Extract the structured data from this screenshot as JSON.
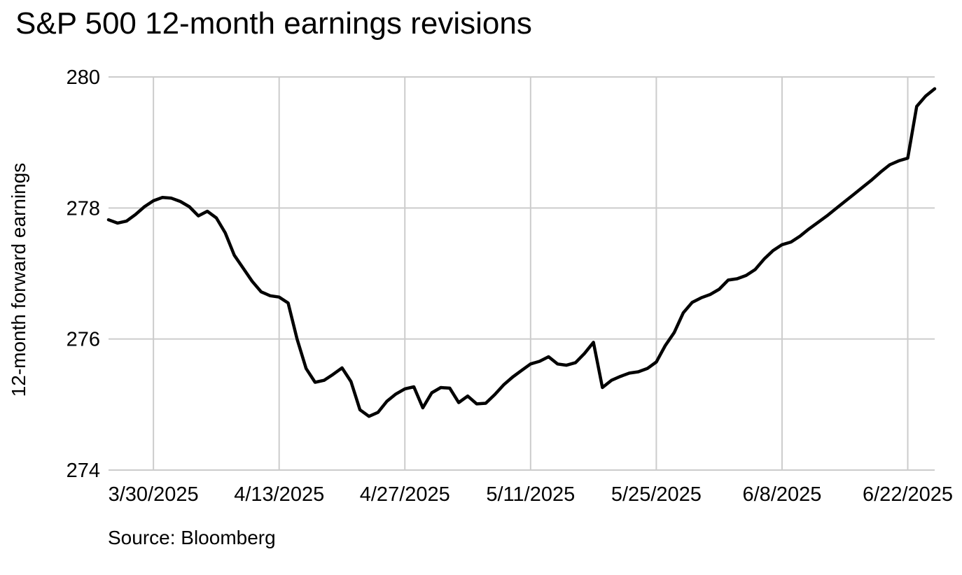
{
  "chart_data": {
    "type": "line",
    "title": "S&P 500 12-month earnings revisions",
    "ylabel": "12-month forward earnings",
    "xlabel": "",
    "source": "Source: Bloomberg",
    "series_name": "12-month forward earnings",
    "ylim": [
      274,
      280
    ],
    "yticks": [
      280,
      278,
      276,
      274
    ],
    "xticks": [
      "3/30/2025",
      "4/13/2025",
      "4/27/2025",
      "5/11/2025",
      "5/25/2025",
      "6/8/2025",
      "6/22/2025"
    ],
    "x_range": [
      "3/25/2025",
      "6/25/2025"
    ],
    "grid": true,
    "legend": false,
    "colors": {
      "line": "#000000",
      "grid": "#cccccc",
      "text": "#000000",
      "background": "#ffffff"
    },
    "points": [
      [
        "3/25/2025",
        277.82
      ],
      [
        "3/26/2025",
        277.77
      ],
      [
        "3/27/2025",
        277.8
      ],
      [
        "3/28/2025",
        277.9
      ],
      [
        "3/29/2025",
        278.02
      ],
      [
        "3/30/2025",
        278.11
      ],
      [
        "3/31/2025",
        278.16
      ],
      [
        "4/1/2025",
        278.15
      ],
      [
        "4/2/2025",
        278.1
      ],
      [
        "4/3/2025",
        278.02
      ],
      [
        "4/4/2025",
        277.88
      ],
      [
        "4/5/2025",
        277.95
      ],
      [
        "4/6/2025",
        277.85
      ],
      [
        "4/7/2025",
        277.62
      ],
      [
        "4/8/2025",
        277.28
      ],
      [
        "4/9/2025",
        277.08
      ],
      [
        "4/10/2025",
        276.88
      ],
      [
        "4/11/2025",
        276.72
      ],
      [
        "4/12/2025",
        276.66
      ],
      [
        "4/13/2025",
        276.64
      ],
      [
        "4/14/2025",
        276.55
      ],
      [
        "4/15/2025",
        276.0
      ],
      [
        "4/16/2025",
        275.55
      ],
      [
        "4/17/2025",
        275.34
      ],
      [
        "4/18/2025",
        275.37
      ],
      [
        "4/19/2025",
        275.46
      ],
      [
        "4/20/2025",
        275.56
      ],
      [
        "4/21/2025",
        275.35
      ],
      [
        "4/22/2025",
        274.92
      ],
      [
        "4/23/2025",
        274.82
      ],
      [
        "4/24/2025",
        274.88
      ],
      [
        "4/25/2025",
        275.05
      ],
      [
        "4/26/2025",
        275.16
      ],
      [
        "4/27/2025",
        275.24
      ],
      [
        "4/28/2025",
        275.27
      ],
      [
        "4/29/2025",
        274.95
      ],
      [
        "4/30/2025",
        275.18
      ],
      [
        "5/1/2025",
        275.26
      ],
      [
        "5/2/2025",
        275.25
      ],
      [
        "5/3/2025",
        275.03
      ],
      [
        "5/4/2025",
        275.13
      ],
      [
        "5/5/2025",
        275.01
      ],
      [
        "5/6/2025",
        275.02
      ],
      [
        "5/7/2025",
        275.15
      ],
      [
        "5/8/2025",
        275.3
      ],
      [
        "5/9/2025",
        275.42
      ],
      [
        "5/10/2025",
        275.52
      ],
      [
        "5/11/2025",
        275.62
      ],
      [
        "5/12/2025",
        275.66
      ],
      [
        "5/13/2025",
        275.73
      ],
      [
        "5/14/2025",
        275.62
      ],
      [
        "5/15/2025",
        275.6
      ],
      [
        "5/16/2025",
        275.64
      ],
      [
        "5/17/2025",
        275.78
      ],
      [
        "5/18/2025",
        275.95
      ],
      [
        "5/19/2025",
        275.26
      ],
      [
        "5/20/2025",
        275.37
      ],
      [
        "5/21/2025",
        275.43
      ],
      [
        "5/22/2025",
        275.48
      ],
      [
        "5/23/2025",
        275.5
      ],
      [
        "5/24/2025",
        275.55
      ],
      [
        "5/25/2025",
        275.65
      ],
      [
        "5/26/2025",
        275.9
      ],
      [
        "5/27/2025",
        276.1
      ],
      [
        "5/28/2025",
        276.4
      ],
      [
        "5/29/2025",
        276.56
      ],
      [
        "5/30/2025",
        276.63
      ],
      [
        "5/31/2025",
        276.68
      ],
      [
        "6/1/2025",
        276.76
      ],
      [
        "6/2/2025",
        276.9
      ],
      [
        "6/3/2025",
        276.92
      ],
      [
        "6/4/2025",
        276.97
      ],
      [
        "6/5/2025",
        277.06
      ],
      [
        "6/6/2025",
        277.22
      ],
      [
        "6/7/2025",
        277.35
      ],
      [
        "6/8/2025",
        277.44
      ],
      [
        "6/9/2025",
        277.48
      ],
      [
        "6/10/2025",
        277.57
      ],
      [
        "6/11/2025",
        277.68
      ],
      [
        "6/12/2025",
        277.78
      ],
      [
        "6/13/2025",
        277.88
      ],
      [
        "6/14/2025",
        277.99
      ],
      [
        "6/15/2025",
        278.1
      ],
      [
        "6/16/2025",
        278.21
      ],
      [
        "6/17/2025",
        278.32
      ],
      [
        "6/18/2025",
        278.43
      ],
      [
        "6/19/2025",
        278.55
      ],
      [
        "6/20/2025",
        278.66
      ],
      [
        "6/21/2025",
        278.72
      ],
      [
        "6/22/2025",
        278.76
      ],
      [
        "6/23/2025",
        279.55
      ],
      [
        "6/24/2025",
        279.71
      ],
      [
        "6/25/2025",
        279.82
      ]
    ]
  }
}
